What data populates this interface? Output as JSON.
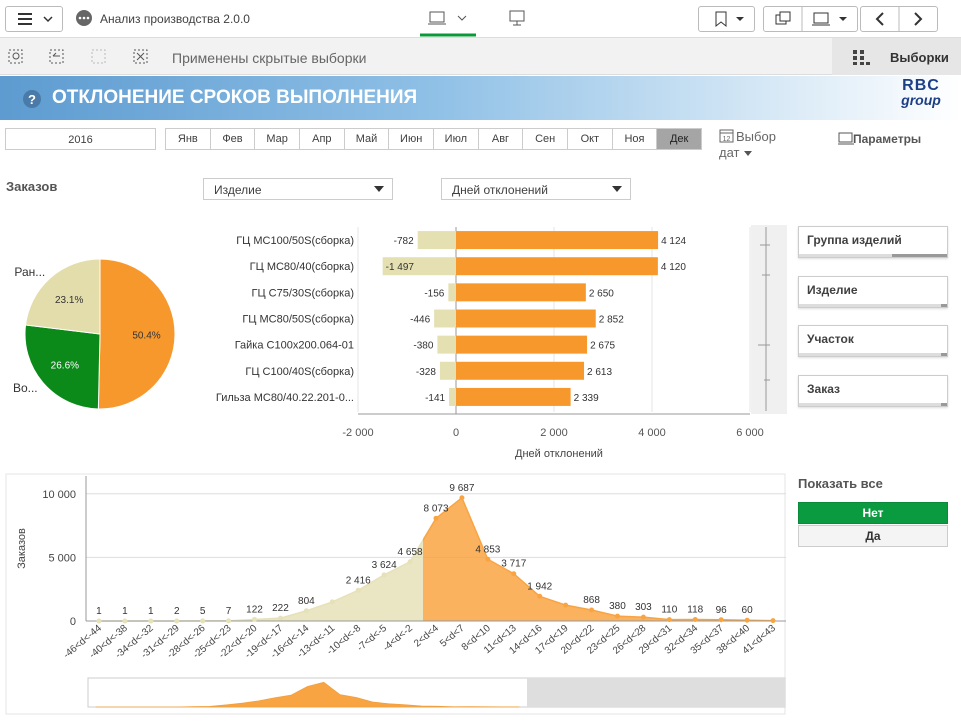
{
  "toolbar": {
    "app_title": "Анализ производства 2.0.0"
  },
  "selection_bar": {
    "message": "Применены скрытые выборки",
    "selections": "Выборки"
  },
  "header": {
    "title": "ОТКЛОНЕНИЕ СРОКОВ ВЫПОЛНЕНИЯ",
    "logo": [
      "RBC",
      "group"
    ]
  },
  "date_filter": {
    "year": "2016",
    "months": [
      "Янв",
      "Фев",
      "Мар",
      "Апр",
      "Май",
      "Июн",
      "Июл",
      "Авг",
      "Сен",
      "Окт",
      "Ноя",
      "Дек"
    ],
    "selected_month_index": 11,
    "date_picker": "Выбор дат",
    "parameters": "Параметры"
  },
  "orders_label": "Заказов",
  "dropdowns": [
    "Изделие",
    "Дней отклонений"
  ],
  "filters": [
    "Группа изделий",
    "Изделие",
    "Участок",
    "Заказ"
  ],
  "show_all": {
    "title": "Показать все",
    "options": [
      "Нет",
      "Да"
    ],
    "selected_index": 0
  },
  "chart_data": [
    {
      "type": "pie",
      "categories": [
        null,
        "Во...",
        "Ран..."
      ],
      "values": [
        50.4,
        26.6,
        23.1
      ],
      "value_labels": [
        "50.4%",
        "26.6%",
        "23.1%"
      ],
      "colors": [
        "#f7982d",
        "#0b8a1a",
        "#e3ddac"
      ]
    },
    {
      "type": "bar",
      "orientation": "horizontal",
      "categories": [
        "ГЦ МС100/50S(сборка)",
        "ГЦ МС80/40(сборка)",
        "ГЦ С75/30S(сборка)",
        "ГЦ МС80/50S(сборка)",
        "Гайка С100х200.064-01",
        "ГЦ С100/40S(сборка)",
        "Гильза МС80/40.22.201-0..."
      ],
      "series": [
        {
          "color": "#e5e0b2",
          "values": [
            -782,
            -1497,
            -156,
            -446,
            -380,
            -328,
            -141
          ],
          "value_labels": [
            "-782",
            "-1 497",
            "-156",
            "-446",
            "-380",
            "-328",
            "-141"
          ]
        },
        {
          "color": "#f7982d",
          "values": [
            4124,
            4120,
            2650,
            2852,
            2675,
            2613,
            2339
          ],
          "value_labels": [
            "4 124",
            "4 120",
            "2 650",
            "2 852",
            "2 675",
            "2 613",
            "2 339"
          ]
        }
      ],
      "xlim": [
        -2000,
        6000
      ],
      "xticks": [
        {
          "value": -2000,
          "label": "-2 000"
        },
        0,
        {
          "value": 2000,
          "label": "2 000"
        },
        {
          "value": 4000,
          "label": "4 000"
        },
        {
          "value": 6000,
          "label": "6 000"
        }
      ],
      "xlabel": "Дней отклонений",
      "grid": true
    },
    {
      "type": "area",
      "categories": [
        "-46<d<-44",
        "-40<d<-38",
        "-34<d<-32",
        "-31<d<-29",
        "-28<d<-26",
        "-25<d<-23",
        "-22<d<-20",
        "-19<d<-17",
        "-16<d<-14",
        "-13<d<-11",
        "-10<d<-8",
        "-7<d<-5",
        "-4<d<-2",
        "2<d<4",
        "5<d<7",
        "8<d<10",
        "11<d<13",
        "14<d<16",
        "17<d<19",
        "20<d<22",
        "23<d<25",
        "26<d<28",
        "29<d<31",
        "32<d<34",
        "35<d<37",
        "38<d<40",
        "41<d<43"
      ],
      "values": [
        1,
        1,
        1,
        2,
        5,
        7,
        122,
        222,
        804,
        1500,
        2416,
        3624,
        4658,
        8073,
        9687,
        4853,
        3717,
        1942,
        1250,
        868,
        380,
        303,
        110,
        118,
        96,
        60,
        30
      ],
      "value_labels": [
        "1",
        "1",
        "1",
        "2",
        "5",
        "7",
        "122",
        "222",
        "804",
        null,
        "2 416",
        "3 624",
        "4 658",
        "8 073",
        "9 687",
        "4 853",
        "3 717",
        "1 942",
        null,
        "868",
        "380",
        "303",
        "110",
        "118",
        "96",
        "60",
        null
      ],
      "ylim": [
        0,
        11400
      ],
      "yticks": [
        0,
        {
          "value": 5000,
          "label": "5 000"
        },
        {
          "value": 10000,
          "label": "10 000"
        }
      ],
      "ylabel": "Заказов",
      "colors": [
        "#e6e1b8",
        "#f9a443"
      ],
      "highlight_from_index": 13,
      "grid": true
    }
  ]
}
